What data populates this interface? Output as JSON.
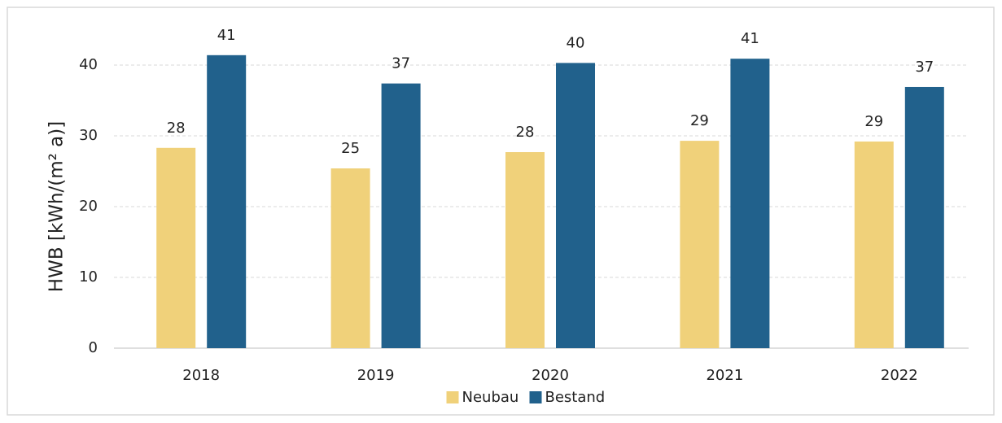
{
  "chart_data": {
    "type": "bar",
    "ylabel": "HWB [kWh/(m² a)]",
    "categories": [
      "2018",
      "2019",
      "2020",
      "2021",
      "2022"
    ],
    "series": [
      {
        "name": "Neubau",
        "color": "#f0d17a",
        "values": [
          28.3,
          25.4,
          27.7,
          29.3,
          29.2
        ],
        "value_labels": [
          "28",
          "25",
          "28",
          "29",
          "29"
        ]
      },
      {
        "name": "Bestand",
        "color": "#21618c",
        "values": [
          41.4,
          37.4,
          40.3,
          40.9,
          36.9
        ],
        "value_labels": [
          "41",
          "37",
          "40",
          "41",
          "37"
        ]
      }
    ],
    "ylim": [
      0,
      45
    ],
    "yticks": [
      0,
      10,
      20,
      30,
      40
    ],
    "grid": true,
    "legend": "bottom"
  }
}
